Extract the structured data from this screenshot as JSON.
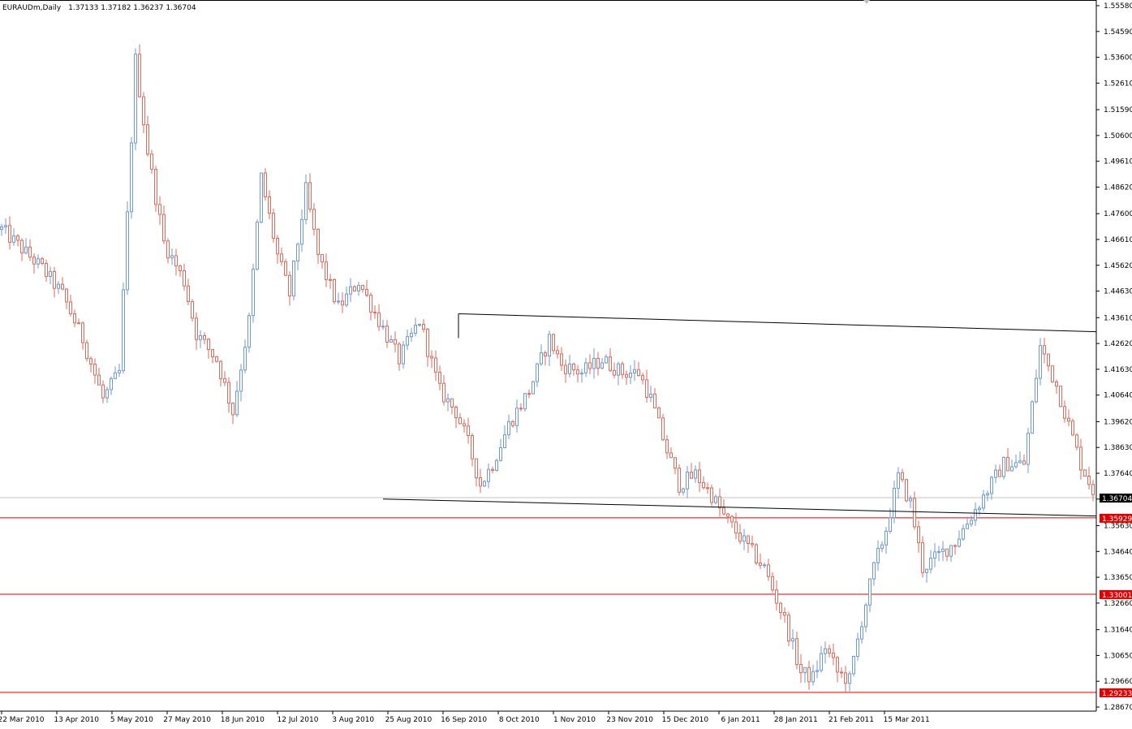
{
  "header": {
    "symbol": "EURAUDm,Daily",
    "ohlc": "1.37133 1.37182 1.36237 1.36704"
  },
  "colors": {
    "background": "#ffffff",
    "bull_candle": "#6f98d8",
    "bear_candle": "#e06a5a",
    "trendline": "#000000",
    "support_line": "#e00000",
    "bid_line": "#c0c0c0",
    "price_box": "#e00000",
    "current_box": "#000000"
  },
  "chart_data": {
    "type": "candlestick",
    "title": "EURAUDm,Daily",
    "ylim": [
      1.2867,
      1.5558
    ],
    "y_ticks": [
      "1.55580",
      "1.54590",
      "1.53600",
      "1.52610",
      "1.51590",
      "1.50600",
      "1.49610",
      "1.48620",
      "1.47600",
      "1.46610",
      "1.45620",
      "1.44630",
      "1.43610",
      "1.42620",
      "1.41630",
      "1.40640",
      "1.39620",
      "1.38630",
      "1.37640",
      "1.36650",
      "1.35630",
      "1.34640",
      "1.33650",
      "1.32660",
      "1.31640",
      "1.30650",
      "1.29660",
      "1.28670"
    ],
    "x_ticks": [
      "22 Mar 2010",
      "13 Apr 2010",
      "5 May 2010",
      "27 May 2010",
      "18 Jun 2010",
      "12 Jul 2010",
      "3 Aug 2010",
      "25 Aug 2010",
      "16 Sep 2010",
      "8 Oct 2010",
      "1 Nov 2010",
      "23 Nov 2010",
      "15 Dec 2010",
      "6 Jan 2011",
      "28 Jan 2011",
      "21 Feb 2011",
      "15 Mar 2011"
    ],
    "current_price": "1.36704",
    "horizontal_lines": [
      {
        "label": "1.35929",
        "value": 1.35929
      },
      {
        "label": "1.33001",
        "value": 1.33001
      },
      {
        "label": "1.29233",
        "value": 1.29233
      }
    ],
    "trendlines": [
      {
        "x": [
          "2010-09-24",
          "2011-03-28"
        ],
        "y": [
          1.4376,
          1.4307
        ]
      },
      {
        "x": [
          "2010-09-01",
          "2011-03-28"
        ],
        "y": [
          1.3665,
          1.36
        ]
      }
    ],
    "series": [
      {
        "anchors": [
          [
            0,
            1.47
          ],
          [
            10,
            1.455
          ],
          [
            15,
            1.445
          ],
          [
            20,
            1.428
          ],
          [
            25,
            1.405
          ],
          [
            29,
            1.415
          ],
          [
            33,
            1.535
          ],
          [
            36,
            1.5
          ],
          [
            40,
            1.465
          ],
          [
            45,
            1.45
          ],
          [
            48,
            1.43
          ],
          [
            53,
            1.42
          ],
          [
            57,
            1.4
          ],
          [
            61,
            1.435
          ],
          [
            64,
            1.49
          ],
          [
            68,
            1.46
          ],
          [
            71,
            1.445
          ],
          [
            75,
            1.485
          ],
          [
            78,
            1.46
          ],
          [
            83,
            1.44
          ],
          [
            88,
            1.45
          ],
          [
            93,
            1.435
          ],
          [
            98,
            1.42
          ],
          [
            103,
            1.435
          ],
          [
            108,
            1.408
          ],
          [
            112,
            1.4
          ],
          [
            115,
            1.388
          ],
          [
            118,
            1.372
          ],
          [
            121,
            1.38
          ],
          [
            125,
            1.395
          ],
          [
            130,
            1.408
          ],
          [
            135,
            1.428
          ],
          [
            138,
            1.418
          ],
          [
            143,
            1.415
          ],
          [
            148,
            1.42
          ],
          [
            153,
            1.415
          ],
          [
            157,
            1.415
          ],
          [
            160,
            1.405
          ],
          [
            164,
            1.385
          ],
          [
            167,
            1.372
          ],
          [
            171,
            1.376
          ],
          [
            175,
            1.368
          ],
          [
            178,
            1.36
          ],
          [
            183,
            1.35
          ],
          [
            188,
            1.34
          ],
          [
            193,
            1.32
          ],
          [
            197,
            1.3
          ],
          [
            200,
            1.298
          ],
          [
            203,
            1.31
          ],
          [
            206,
            1.3
          ],
          [
            209,
            1.297
          ],
          [
            212,
            1.32
          ],
          [
            215,
            1.34
          ],
          [
            218,
            1.355
          ],
          [
            221,
            1.375
          ],
          [
            224,
            1.365
          ],
          [
            227,
            1.34
          ],
          [
            231,
            1.345
          ],
          [
            235,
            1.35
          ],
          [
            239,
            1.36
          ],
          [
            243,
            1.37
          ],
          [
            247,
            1.38
          ],
          [
            252,
            1.38
          ],
          [
            256,
            1.425
          ],
          [
            260,
            1.41
          ],
          [
            263,
            1.395
          ],
          [
            266,
            1.38
          ],
          [
            269,
            1.37
          ]
        ]
      }
    ]
  },
  "plot": {
    "n_candles": 270
  }
}
